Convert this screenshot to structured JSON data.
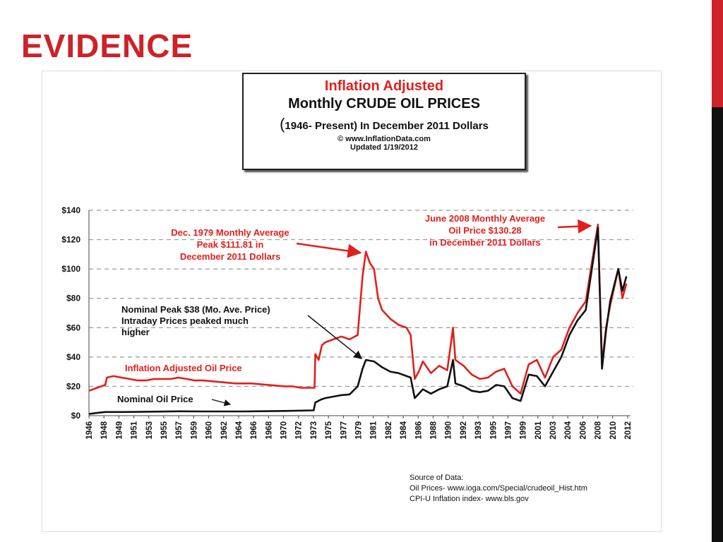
{
  "slide": {
    "title": "EVIDENCE",
    "accent": "#cc2229"
  },
  "title_box": {
    "line1": "Inflation Adjusted",
    "line2": "Monthly CRUDE OIL PRICES",
    "line3_paren": "(",
    "line3": "1946- Present) In December 2011 Dollars",
    "line4": "© www.InflationData.com",
    "line5": "Updated 1/19/2012"
  },
  "chart_data": {
    "type": "line",
    "y_tick_labels": [
      "$0",
      "$20",
      "$40",
      "$60",
      "$80",
      "$100",
      "$120",
      "$140"
    ],
    "y_ticks": [
      0,
      20,
      40,
      60,
      80,
      100,
      120,
      140
    ],
    "ylim": [
      0,
      140
    ],
    "xlim": [
      1946,
      2012.5
    ],
    "x_tick_labels": [
      "1946",
      "1948",
      "1949",
      "1951",
      "1953",
      "1955",
      "1957",
      "1959",
      "1960",
      "1962",
      "1964",
      "1966",
      "1968",
      "1970",
      "1972",
      "1973",
      "1975",
      "1977",
      "1979",
      "1981",
      "1982",
      "1984",
      "1986",
      "1988",
      "1990",
      "1992",
      "1993",
      "1995",
      "1997",
      "1999",
      "2001",
      "2003",
      "2004",
      "2006",
      "2008",
      "2010",
      "2012"
    ],
    "grid": true,
    "series": [
      {
        "name": "Inflation Adjusted Oil Price",
        "color": "#e0201c",
        "points": [
          [
            1946,
            17
          ],
          [
            1947,
            19
          ],
          [
            1948,
            21
          ],
          [
            1948.2,
            26
          ],
          [
            1949,
            27
          ],
          [
            1950,
            26
          ],
          [
            1951,
            25
          ],
          [
            1952,
            24
          ],
          [
            1953,
            24
          ],
          [
            1954,
            25
          ],
          [
            1955,
            25
          ],
          [
            1956,
            25
          ],
          [
            1957,
            26
          ],
          [
            1958,
            25
          ],
          [
            1959,
            24
          ],
          [
            1960,
            24
          ],
          [
            1962,
            23
          ],
          [
            1964,
            22
          ],
          [
            1966,
            22
          ],
          [
            1968,
            21
          ],
          [
            1970,
            20
          ],
          [
            1971,
            20
          ],
          [
            1972,
            19
          ],
          [
            1973.7,
            19
          ],
          [
            1973.8,
            42
          ],
          [
            1974.2,
            38
          ],
          [
            1974.6,
            48
          ],
          [
            1975,
            50
          ],
          [
            1976,
            52
          ],
          [
            1977,
            54
          ],
          [
            1978,
            52
          ],
          [
            1979,
            55
          ],
          [
            1979.6,
            95
          ],
          [
            1980,
            111.8
          ],
          [
            1980.5,
            104
          ],
          [
            1981,
            100
          ],
          [
            1981.5,
            80
          ],
          [
            1982,
            72
          ],
          [
            1983,
            66
          ],
          [
            1984,
            62
          ],
          [
            1985,
            60
          ],
          [
            1985.5,
            55
          ],
          [
            1986,
            25
          ],
          [
            1986.5,
            30
          ],
          [
            1987,
            37
          ],
          [
            1988,
            29
          ],
          [
            1989,
            34
          ],
          [
            1990,
            31
          ],
          [
            1990.7,
            60
          ],
          [
            1991,
            38
          ],
          [
            1992,
            34
          ],
          [
            1993,
            28
          ],
          [
            1994,
            25
          ],
          [
            1995,
            26
          ],
          [
            1996,
            30
          ],
          [
            1997,
            32
          ],
          [
            1998,
            20
          ],
          [
            1999,
            15
          ],
          [
            2000,
            35
          ],
          [
            2001,
            38
          ],
          [
            2002,
            26
          ],
          [
            2003,
            40
          ],
          [
            2004,
            45
          ],
          [
            2005,
            60
          ],
          [
            2006,
            70
          ],
          [
            2007,
            78
          ],
          [
            2008.5,
            130.3
          ],
          [
            2009,
            35
          ],
          [
            2009.5,
            60
          ],
          [
            2010,
            75
          ],
          [
            2011,
            100
          ],
          [
            2011.5,
            80
          ],
          [
            2012,
            90
          ]
        ]
      },
      {
        "name": "Nominal Oil Price",
        "color": "#111111",
        "points": [
          [
            1946,
            1.2
          ],
          [
            1947,
            1.9
          ],
          [
            1948,
            2.5
          ],
          [
            1950,
            2.5
          ],
          [
            1953,
            2.7
          ],
          [
            1957,
            3
          ],
          [
            1960,
            2.9
          ],
          [
            1965,
            2.9
          ],
          [
            1970,
            3.2
          ],
          [
            1973.6,
            3.6
          ],
          [
            1973.8,
            9
          ],
          [
            1974.5,
            11
          ],
          [
            1975,
            12
          ],
          [
            1976,
            13
          ],
          [
            1977,
            14
          ],
          [
            1978,
            14.5
          ],
          [
            1979,
            20
          ],
          [
            1979.6,
            32
          ],
          [
            1980,
            38
          ],
          [
            1981,
            37
          ],
          [
            1982,
            33
          ],
          [
            1983,
            30
          ],
          [
            1984,
            29
          ],
          [
            1985,
            27
          ],
          [
            1985.5,
            26
          ],
          [
            1986,
            12
          ],
          [
            1987,
            18
          ],
          [
            1988,
            15
          ],
          [
            1989,
            18
          ],
          [
            1990,
            20
          ],
          [
            1990.7,
            38
          ],
          [
            1991,
            22
          ],
          [
            1992,
            20
          ],
          [
            1993,
            17
          ],
          [
            1994,
            16
          ],
          [
            1995,
            17
          ],
          [
            1996,
            21
          ],
          [
            1997,
            20
          ],
          [
            1998,
            12
          ],
          [
            1999,
            10
          ],
          [
            2000,
            28
          ],
          [
            2001,
            27
          ],
          [
            2002,
            20
          ],
          [
            2003,
            30
          ],
          [
            2004,
            40
          ],
          [
            2005,
            55
          ],
          [
            2006,
            65
          ],
          [
            2007,
            72
          ],
          [
            2008.5,
            128
          ],
          [
            2009,
            32
          ],
          [
            2009.5,
            58
          ],
          [
            2010,
            78
          ],
          [
            2011,
            100
          ],
          [
            2011.5,
            85
          ],
          [
            2012,
            95
          ]
        ]
      }
    ],
    "annotations": {
      "peak1979": [
        "Dec. 1979 Monthly Average",
        "Peak $111.81 in",
        "December 2011 Dollars"
      ],
      "peak2008": [
        "June 2008 Monthly Average",
        "Oil  Price $130.28",
        "in December 2011 Dollars"
      ],
      "nominal_peak": [
        "Nominal Peak $38 (Mo. Ave. Price)",
        "Intraday Prices peaked much",
        "higher"
      ],
      "inflation_label": "Inflation Adjusted Oil Price",
      "nominal_label": "Nominal Oil Price"
    }
  },
  "source": {
    "line1": "Source of Data:",
    "line2": "Oil Prices-   www.ioga.com/Special/crudeoil_Hist.htm",
    "line3": "CPI-U  Inflation index-    www.bls.gov"
  }
}
